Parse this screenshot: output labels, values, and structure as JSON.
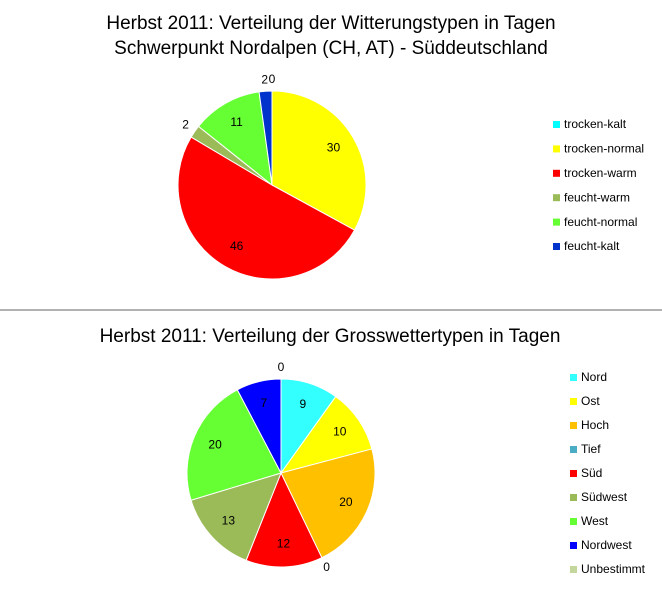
{
  "chart_data": [
    {
      "type": "pie",
      "title": "Herbst 2011: Verteilung der Witterungstypen in Tagen",
      "subtitle": "Schwerpunkt Nordalpen (CH, AT) - Süddeutschland",
      "categories": [
        "trocken-kalt",
        "trocken-normal",
        "trocken-warm",
        "feucht-warm",
        "feucht-normal",
        "feucht-kalt"
      ],
      "values": [
        0,
        30,
        46,
        2,
        11,
        2
      ],
      "colors": [
        "#00ffff",
        "#ffff00",
        "#ff0000",
        "#9bbb59",
        "#66ff33",
        "#0033cc"
      ],
      "legend": "right"
    },
    {
      "type": "pie",
      "title": "Herbst 2011: Verteilung der Grosswettertypen in Tagen",
      "categories": [
        "Nord",
        "Ost",
        "Hoch",
        "Tief",
        "Süd",
        "Südwest",
        "West",
        "Nordwest",
        "Unbestimmt"
      ],
      "values": [
        9,
        10,
        20,
        0,
        12,
        13,
        20,
        7,
        0
      ],
      "colors": [
        "#33ffff",
        "#ffff00",
        "#ffc000",
        "#4bacc6",
        "#ff0000",
        "#9bbb59",
        "#66ff33",
        "#0000ff",
        "#c3d69b"
      ],
      "legend": "right"
    }
  ]
}
